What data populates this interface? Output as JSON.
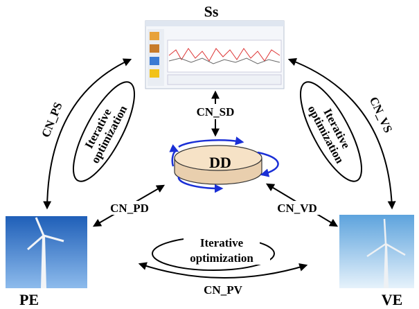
{
  "nodes": [
    {
      "label": "Ss"
    },
    {
      "label": "DD"
    },
    {
      "label": "PE"
    },
    {
      "label": "VE"
    }
  ],
  "edges": [
    {
      "label": "CN_PS"
    },
    {
      "label": "CN_VS"
    },
    {
      "label": "CN_SD"
    },
    {
      "label": "CN_PD"
    },
    {
      "label": "CN_VD"
    },
    {
      "label": "CN_PV"
    }
  ],
  "loops": [
    {
      "lines": [
        "Iterative",
        "optimization"
      ]
    },
    {
      "lines": [
        "Iterative",
        "optimization"
      ]
    },
    {
      "lines": [
        "Iterative",
        "optimization"
      ]
    }
  ]
}
